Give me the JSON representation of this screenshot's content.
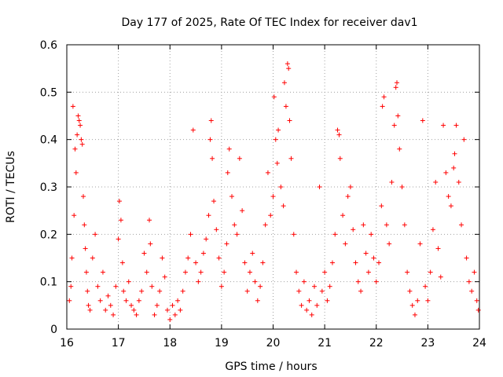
{
  "chart_data": {
    "type": "scatter",
    "title": "Day 177 of 2025, Rate Of TEC Index for receiver dav1",
    "xlabel": "GPS time / hours",
    "ylabel": "ROTI / TECUs",
    "xlim": [
      16,
      24
    ],
    "ylim": [
      0,
      0.6
    ],
    "xticks": [
      "16",
      "17",
      "18",
      "19",
      "20",
      "21",
      "22",
      "23",
      "24"
    ],
    "yticks": [
      "0",
      "0.1",
      "0.2",
      "0.3",
      "0.4",
      "0.5",
      "0.6"
    ],
    "grid": true,
    "marker": "+",
    "color": "#ff0000",
    "series": [
      {
        "points": [
          [
            16.05,
            0.06
          ],
          [
            16.08,
            0.09
          ],
          [
            16.1,
            0.15
          ],
          [
            16.12,
            0.47
          ],
          [
            16.14,
            0.24
          ],
          [
            16.16,
            0.38
          ],
          [
            16.18,
            0.33
          ],
          [
            16.2,
            0.41
          ],
          [
            16.22,
            0.45
          ],
          [
            16.24,
            0.44
          ],
          [
            16.26,
            0.43
          ],
          [
            16.28,
            0.4
          ],
          [
            16.3,
            0.39
          ],
          [
            16.32,
            0.28
          ],
          [
            16.34,
            0.22
          ],
          [
            16.36,
            0.17
          ],
          [
            16.38,
            0.12
          ],
          [
            16.4,
            0.08
          ],
          [
            16.42,
            0.05
          ],
          [
            16.45,
            0.04
          ],
          [
            16.5,
            0.15
          ],
          [
            16.55,
            0.2
          ],
          [
            16.6,
            0.09
          ],
          [
            16.65,
            0.06
          ],
          [
            16.7,
            0.12
          ],
          [
            16.75,
            0.04
          ],
          [
            16.8,
            0.07
          ],
          [
            16.85,
            0.05
          ],
          [
            16.9,
            0.03
          ],
          [
            16.95,
            0.09
          ],
          [
            17.0,
            0.19
          ],
          [
            17.02,
            0.27
          ],
          [
            17.05,
            0.23
          ],
          [
            17.08,
            0.14
          ],
          [
            17.1,
            0.08
          ],
          [
            17.15,
            0.06
          ],
          [
            17.2,
            0.1
          ],
          [
            17.25,
            0.05
          ],
          [
            17.3,
            0.04
          ],
          [
            17.35,
            0.03
          ],
          [
            17.4,
            0.06
          ],
          [
            17.45,
            0.08
          ],
          [
            17.5,
            0.16
          ],
          [
            17.55,
            0.12
          ],
          [
            17.6,
            0.23
          ],
          [
            17.62,
            0.18
          ],
          [
            17.65,
            0.09
          ],
          [
            17.7,
            0.03
          ],
          [
            17.75,
            0.05
          ],
          [
            17.8,
            0.08
          ],
          [
            17.85,
            0.15
          ],
          [
            17.9,
            0.11
          ],
          [
            17.95,
            0.04
          ],
          [
            18.0,
            0.02
          ],
          [
            18.05,
            0.05
          ],
          [
            18.1,
            0.03
          ],
          [
            18.15,
            0.06
          ],
          [
            18.2,
            0.04
          ],
          [
            18.25,
            0.08
          ],
          [
            18.3,
            0.12
          ],
          [
            18.35,
            0.15
          ],
          [
            18.4,
            0.2
          ],
          [
            18.45,
            0.42
          ],
          [
            18.5,
            0.14
          ],
          [
            18.55,
            0.1
          ],
          [
            18.6,
            0.12
          ],
          [
            18.65,
            0.16
          ],
          [
            18.7,
            0.19
          ],
          [
            18.75,
            0.24
          ],
          [
            18.78,
            0.4
          ],
          [
            18.8,
            0.44
          ],
          [
            18.82,
            0.36
          ],
          [
            18.85,
            0.27
          ],
          [
            18.9,
            0.21
          ],
          [
            18.95,
            0.15
          ],
          [
            19.0,
            0.09
          ],
          [
            19.05,
            0.12
          ],
          [
            19.1,
            0.18
          ],
          [
            19.12,
            0.33
          ],
          [
            19.15,
            0.38
          ],
          [
            19.2,
            0.28
          ],
          [
            19.25,
            0.22
          ],
          [
            19.3,
            0.2
          ],
          [
            19.35,
            0.36
          ],
          [
            19.4,
            0.25
          ],
          [
            19.45,
            0.14
          ],
          [
            19.5,
            0.08
          ],
          [
            19.55,
            0.12
          ],
          [
            19.6,
            0.16
          ],
          [
            19.65,
            0.1
          ],
          [
            19.7,
            0.06
          ],
          [
            19.75,
            0.09
          ],
          [
            19.8,
            0.14
          ],
          [
            19.85,
            0.22
          ],
          [
            19.9,
            0.33
          ],
          [
            19.95,
            0.24
          ],
          [
            20.0,
            0.28
          ],
          [
            20.02,
            0.49
          ],
          [
            20.05,
            0.4
          ],
          [
            20.08,
            0.35
          ],
          [
            20.1,
            0.42
          ],
          [
            20.15,
            0.3
          ],
          [
            20.2,
            0.26
          ],
          [
            20.22,
            0.52
          ],
          [
            20.25,
            0.47
          ],
          [
            20.28,
            0.56
          ],
          [
            20.3,
            0.55
          ],
          [
            20.32,
            0.44
          ],
          [
            20.35,
            0.36
          ],
          [
            20.4,
            0.2
          ],
          [
            20.45,
            0.12
          ],
          [
            20.5,
            0.08
          ],
          [
            20.55,
            0.05
          ],
          [
            20.6,
            0.1
          ],
          [
            20.65,
            0.04
          ],
          [
            20.7,
            0.06
          ],
          [
            20.75,
            0.03
          ],
          [
            20.8,
            0.09
          ],
          [
            20.85,
            0.05
          ],
          [
            20.9,
            0.3
          ],
          [
            20.95,
            0.08
          ],
          [
            21.0,
            0.12
          ],
          [
            21.05,
            0.06
          ],
          [
            21.1,
            0.09
          ],
          [
            21.15,
            0.14
          ],
          [
            21.2,
            0.2
          ],
          [
            21.25,
            0.42
          ],
          [
            21.28,
            0.41
          ],
          [
            21.3,
            0.36
          ],
          [
            21.35,
            0.24
          ],
          [
            21.4,
            0.18
          ],
          [
            21.45,
            0.28
          ],
          [
            21.5,
            0.3
          ],
          [
            21.55,
            0.21
          ],
          [
            21.6,
            0.14
          ],
          [
            21.65,
            0.1
          ],
          [
            21.7,
            0.08
          ],
          [
            21.75,
            0.22
          ],
          [
            21.8,
            0.16
          ],
          [
            21.85,
            0.12
          ],
          [
            21.9,
            0.2
          ],
          [
            21.95,
            0.15
          ],
          [
            22.0,
            0.1
          ],
          [
            22.05,
            0.14
          ],
          [
            22.1,
            0.26
          ],
          [
            22.12,
            0.47
          ],
          [
            22.15,
            0.49
          ],
          [
            22.2,
            0.22
          ],
          [
            22.25,
            0.18
          ],
          [
            22.3,
            0.31
          ],
          [
            22.35,
            0.43
          ],
          [
            22.38,
            0.51
          ],
          [
            22.4,
            0.52
          ],
          [
            22.42,
            0.45
          ],
          [
            22.45,
            0.38
          ],
          [
            22.5,
            0.3
          ],
          [
            22.55,
            0.22
          ],
          [
            22.6,
            0.12
          ],
          [
            22.65,
            0.08
          ],
          [
            22.7,
            0.05
          ],
          [
            22.75,
            0.03
          ],
          [
            22.8,
            0.06
          ],
          [
            22.85,
            0.18
          ],
          [
            22.9,
            0.44
          ],
          [
            22.95,
            0.09
          ],
          [
            23.0,
            0.06
          ],
          [
            23.05,
            0.12
          ],
          [
            23.1,
            0.21
          ],
          [
            23.15,
            0.31
          ],
          [
            23.2,
            0.17
          ],
          [
            23.25,
            0.11
          ],
          [
            23.3,
            0.43
          ],
          [
            23.35,
            0.33
          ],
          [
            23.4,
            0.28
          ],
          [
            23.45,
            0.26
          ],
          [
            23.5,
            0.34
          ],
          [
            23.52,
            0.37
          ],
          [
            23.55,
            0.43
          ],
          [
            23.6,
            0.31
          ],
          [
            23.65,
            0.22
          ],
          [
            23.7,
            0.4
          ],
          [
            23.75,
            0.15
          ],
          [
            23.8,
            0.1
          ],
          [
            23.85,
            0.08
          ],
          [
            23.9,
            0.12
          ],
          [
            23.95,
            0.06
          ],
          [
            23.98,
            0.04
          ]
        ]
      }
    ]
  }
}
